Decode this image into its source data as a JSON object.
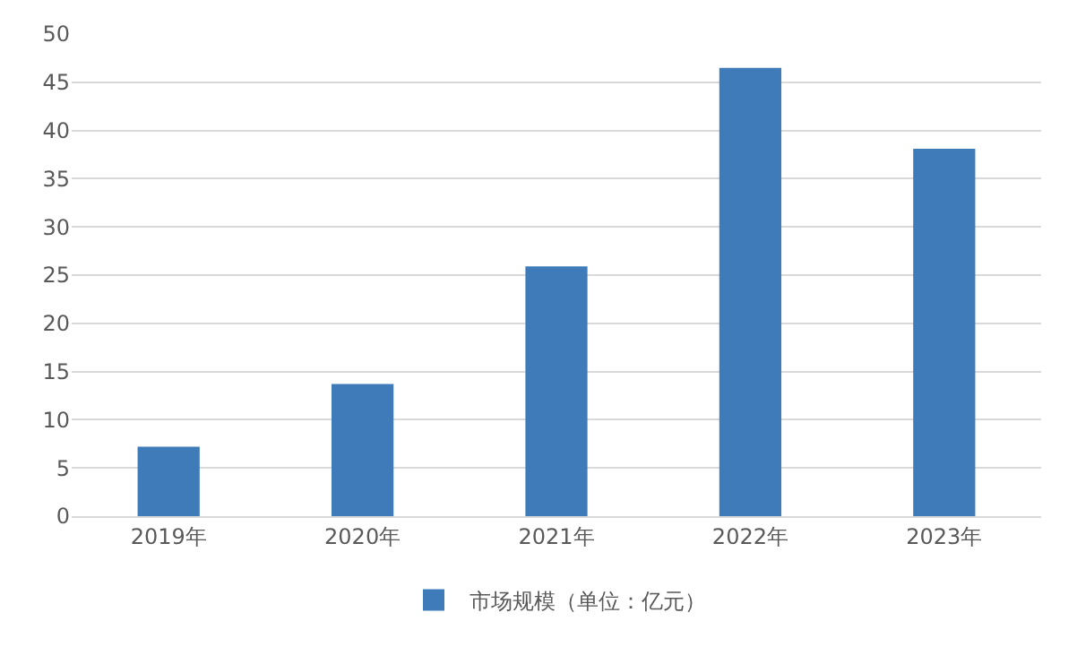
{
  "chart_data": {
    "type": "bar",
    "categories": [
      "2019年",
      "2020年",
      "2021年",
      "2022年",
      "2023年"
    ],
    "series": [
      {
        "name": "市场规模（单位：亿元）",
        "color": "#3f7bb8",
        "values": [
          7.2,
          13.7,
          25.9,
          46.5,
          38.1
        ]
      }
    ],
    "ylim": [
      0,
      50
    ],
    "yticks": [
      0,
      5,
      10,
      15,
      20,
      25,
      30,
      35,
      40,
      45,
      50
    ],
    "grid": "y",
    "legend": "bottom"
  }
}
